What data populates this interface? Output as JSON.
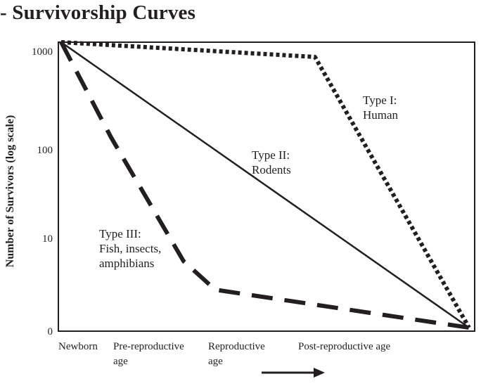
{
  "page": {
    "title": "- Survivorship Curves"
  },
  "chart_data": {
    "type": "line",
    "title": "- Survivorship Curves",
    "ylabel": "Number of Survivors (log scale)",
    "xlabel": "",
    "y_scale": "log",
    "y_ticks": [
      "1000",
      "100",
      "10",
      "0"
    ],
    "x_categories": [
      {
        "lines": [
          "Newborn"
        ]
      },
      {
        "lines": [
          "Pre-reproductive",
          "age"
        ]
      },
      {
        "lines": [
          "Reproductive",
          "age"
        ]
      },
      {
        "lines": [
          "Post-reproductive age"
        ]
      }
    ],
    "grid": false,
    "line_color": "#231f20",
    "series": [
      {
        "name": "Type I: Human",
        "label_lines": [
          "Type I:",
          "Human"
        ],
        "style": "dotted",
        "points": [
          {
            "stage": 0,
            "survivors": 1000
          },
          {
            "stage": 2.8,
            "survivors": 700
          },
          {
            "stage": 4.5,
            "survivors": 1
          }
        ]
      },
      {
        "name": "Type II: Rodents",
        "label_lines": [
          "Type II:",
          "Rodents"
        ],
        "style": "solid",
        "points": [
          {
            "stage": 0,
            "survivors": 1000
          },
          {
            "stage": 4.5,
            "survivors": 1
          }
        ]
      },
      {
        "name": "Type III: Fish, insects, amphibians",
        "label_lines": [
          "Type III:",
          "Fish, insects,",
          "amphibians"
        ],
        "style": "dashed",
        "points": [
          {
            "stage": 0,
            "survivors": 1000
          },
          {
            "stage": 0.55,
            "survivors": 100
          },
          {
            "stage": 1.35,
            "survivors": 5
          },
          {
            "stage": 1.7,
            "survivors": 2.5
          },
          {
            "stage": 4.5,
            "survivors": 1
          }
        ]
      }
    ],
    "arrow": "right"
  }
}
